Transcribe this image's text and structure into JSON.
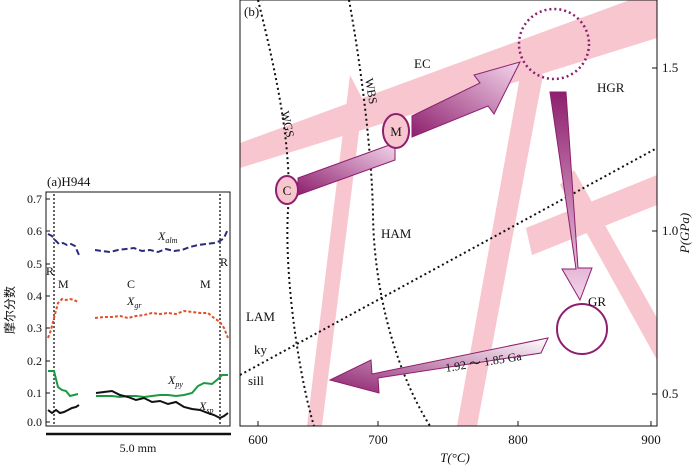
{
  "panel_a": {
    "title": "(a)H944",
    "ylabel": "摩尔分数",
    "y_ticks": [
      "0.7",
      "0.6",
      "0.5",
      "0.4",
      "0.3",
      "0.2",
      "0.1",
      "0.0"
    ],
    "zone_labels": [
      "R",
      "M",
      "C",
      "M",
      "R"
    ],
    "series": [
      {
        "label": "X",
        "sub": "alm",
        "color": "#2a2a7a"
      },
      {
        "label": "X",
        "sub": "gr",
        "color": "#e0502a"
      },
      {
        "label": "X",
        "sub": "py",
        "color": "#1a9a40"
      },
      {
        "label": "X",
        "sub": "sp",
        "color": "#111111"
      }
    ],
    "scale_bar": "5.0 mm"
  },
  "panel_b": {
    "title": "(b)",
    "xlabel": "T(°C)",
    "ylabel": "P(GPa)",
    "x_ticks": [
      "600",
      "700",
      "800",
      "900"
    ],
    "y_ticks": [
      "1.5",
      "1.0",
      "0.5"
    ],
    "field_labels": {
      "ec": "EC",
      "hgr": "HGR",
      "ham": "HAM",
      "lam": "LAM",
      "gr": "GR",
      "wgs": "WGS",
      "wbs": "WBS",
      "ky": "ky",
      "sill": "sill"
    },
    "points": {
      "c": "C",
      "m": "M"
    },
    "age_label": "1.92 ～ 1.85 Ga"
  }
}
